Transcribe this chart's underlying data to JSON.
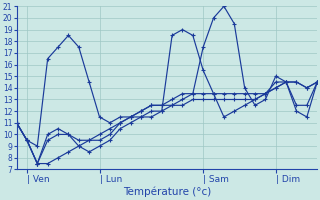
{
  "background_color": "#cce8e5",
  "grid_color": "#9fc8c4",
  "line_color": "#1a3a9a",
  "marker_color": "#1a3a9a",
  "xlabel": "Température (°c)",
  "ylim": [
    7,
    21
  ],
  "xlim": [
    0,
    29
  ],
  "yticks": [
    7,
    8,
    9,
    10,
    11,
    12,
    13,
    14,
    15,
    16,
    17,
    18,
    19,
    20,
    21
  ],
  "xtick_labels": [
    "| Ven",
    "| Lun",
    "| Sam",
    "| Dim"
  ],
  "xtick_positions": [
    1,
    8,
    18,
    25
  ],
  "lines": [
    [
      11.0,
      9.5,
      9.0,
      16.5,
      17.5,
      18.5,
      17.5,
      14.5,
      11.5,
      11.0,
      11.5,
      11.5,
      11.5,
      12.0,
      12.0,
      12.5,
      13.0,
      13.5,
      17.5,
      20.0,
      21.0,
      19.5,
      14.0,
      12.5,
      13.0,
      15.0,
      14.5,
      12.5,
      12.5,
      14.5
    ],
    [
      11.0,
      9.5,
      7.5,
      10.0,
      10.5,
      10.0,
      9.0,
      8.5,
      9.0,
      9.5,
      10.5,
      11.0,
      11.5,
      11.5,
      12.0,
      18.5,
      19.0,
      18.5,
      15.5,
      13.5,
      11.5,
      12.0,
      12.5,
      13.0,
      13.5,
      14.5,
      14.5,
      12.0,
      11.5,
      14.5
    ],
    [
      11.0,
      9.5,
      7.5,
      9.5,
      10.0,
      10.0,
      9.5,
      9.5,
      9.5,
      10.0,
      11.0,
      11.5,
      12.0,
      12.5,
      12.5,
      13.0,
      13.5,
      13.5,
      13.5,
      13.5,
      13.5,
      13.5,
      13.5,
      13.5,
      13.5,
      14.0,
      14.5,
      14.5,
      14.0,
      14.5
    ],
    [
      11.0,
      9.5,
      7.5,
      7.5,
      8.0,
      8.5,
      9.0,
      9.5,
      10.0,
      10.5,
      11.0,
      11.5,
      12.0,
      12.5,
      12.5,
      12.5,
      12.5,
      13.0,
      13.0,
      13.0,
      13.0,
      13.0,
      13.0,
      13.0,
      13.5,
      14.0,
      14.5,
      14.5,
      14.0,
      14.5
    ]
  ]
}
